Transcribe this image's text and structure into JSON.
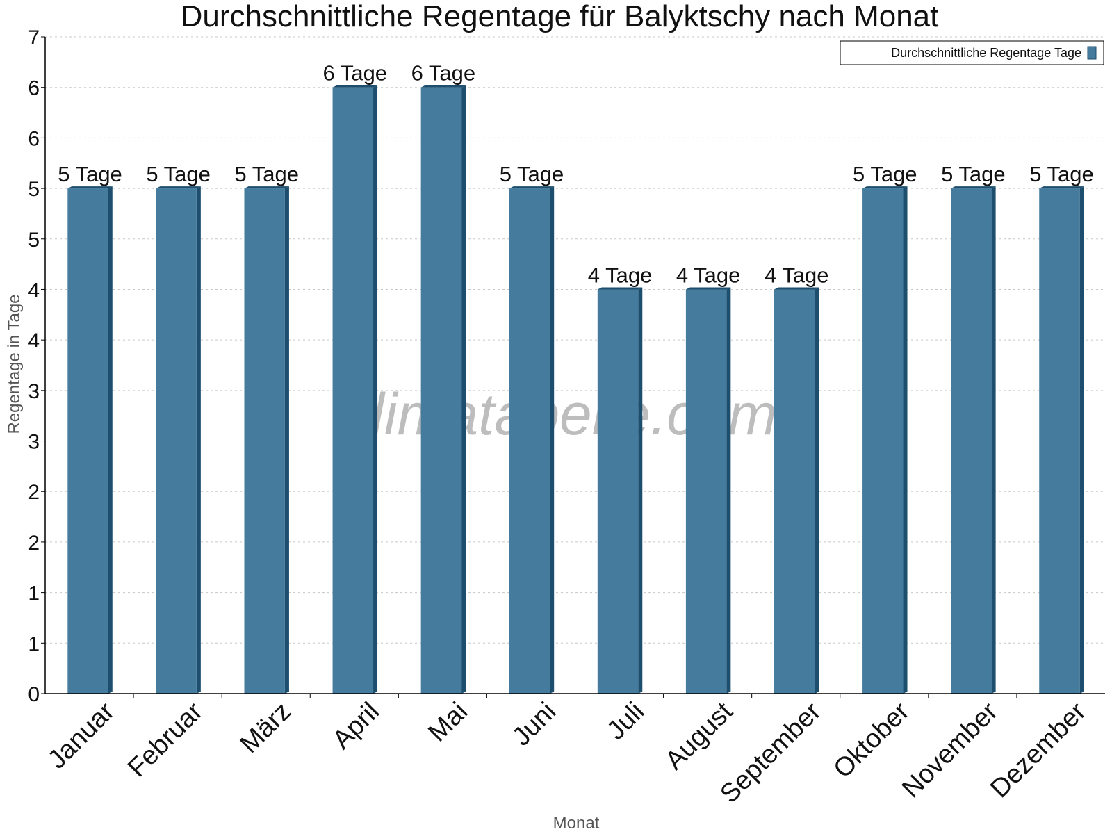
{
  "chart_data": {
    "type": "bar",
    "title": "Durchschnittliche Regentage für Balyktschy nach Monat",
    "xlabel": "Monat",
    "ylabel": "Regentage in Tage",
    "categories": [
      "Januar",
      "Februar",
      "März",
      "April",
      "Mai",
      "Juni",
      "Juli",
      "August",
      "September",
      "Oktober",
      "November",
      "Dezember"
    ],
    "series": [
      {
        "name": "Durchschnittliche Regentage Tage",
        "values": [
          5,
          5,
          5,
          6,
          6,
          5,
          4,
          4,
          4,
          5,
          5,
          5
        ],
        "labels": [
          "5 Tage",
          "5 Tage",
          "5 Tage",
          "6 Tage",
          "6 Tage",
          "5 Tage",
          "4 Tage",
          "4 Tage",
          "4 Tage",
          "5 Tage",
          "5 Tage",
          "5 Tage"
        ]
      }
    ],
    "ylim": [
      0,
      6.5
    ],
    "yticks": [
      0,
      0.5,
      1,
      1.5,
      2,
      2.5,
      3,
      3.5,
      4,
      4.5,
      5,
      5.5,
      6,
      6.5
    ],
    "yticklabels": [
      "0",
      "1",
      "1",
      "2",
      "2",
      "3",
      "3",
      "4",
      "4",
      "5",
      "5",
      "6",
      "6",
      "7"
    ],
    "grid": true,
    "legend_position": "top-right",
    "colors": {
      "bar": "#457b9d",
      "bar_side": "#1d4e6e",
      "grid": "#c8c8c8"
    },
    "watermark": "klimatabelle.com"
  }
}
